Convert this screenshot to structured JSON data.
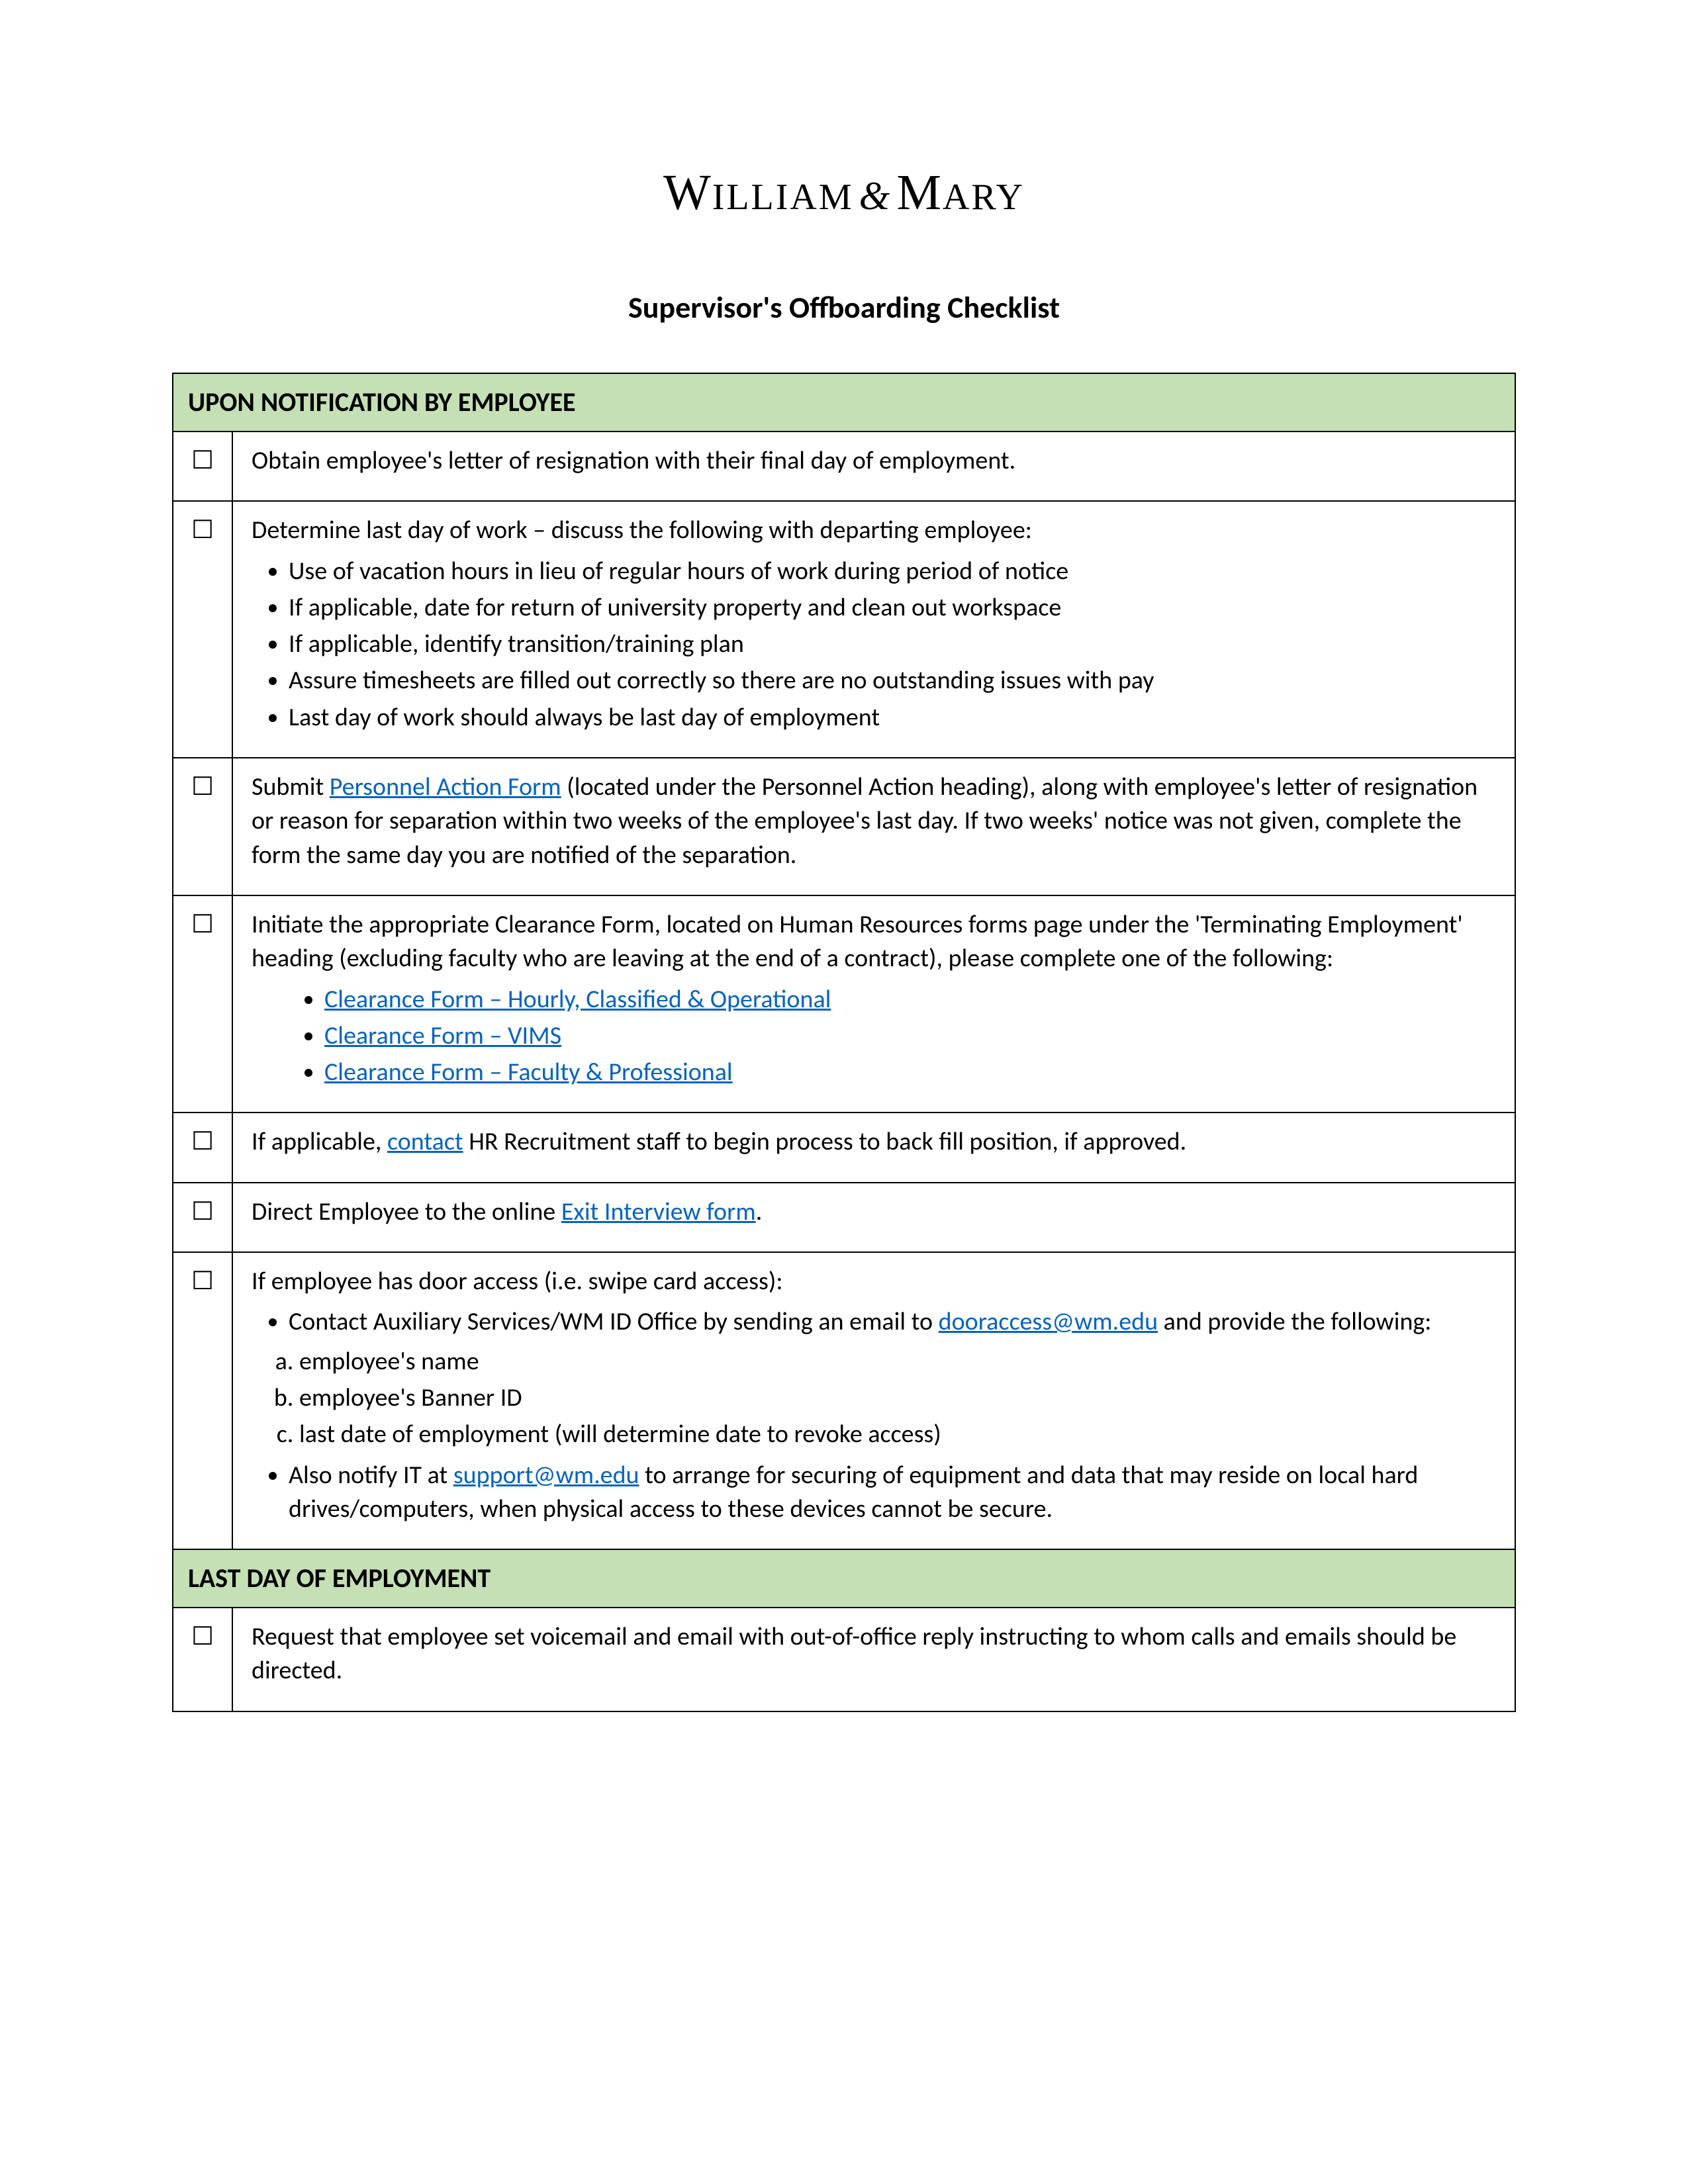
{
  "logo": {
    "w": "W",
    "illiam": "ILLIAM",
    "amp": "&",
    "m": "M",
    "ary": "ARY"
  },
  "title": "Supervisor's Offboarding Checklist",
  "colors": {
    "section_header_bg": "#c5e0b4",
    "link": "#0563c1",
    "border": "#000000",
    "page_bg": "#ffffff",
    "text": "#000000"
  },
  "sections": [
    {
      "header": "UPON NOTIFICATION BY EMPLOYEE",
      "rows": [
        {
          "check": "☐",
          "html": "<p>Obtain employee's letter of resignation with their final day of employment.</p>"
        },
        {
          "check": "☐",
          "html": "<p>Determine last day of work – discuss the following with departing employee:</p><ul><li>Use of vacation hours in lieu of regular hours of work during period of notice</li><li>If applicable, date for return of university property and clean out workspace</li><li>If applicable, identify transition/training plan</li><li>Assure timesheets are filled out correctly so there are no outstanding issues with pay</li><li>Last day of work should always be last day of employment</li></ul>"
        },
        {
          "check": "☐",
          "html": "<p>Submit <a class='doclink' data-name='personnel-action-form-link' data-interactable='true'>Personnel Action Form</a> (located under the Personnel Action heading), along with employee's letter of resignation or reason for separation within two weeks of the employee's last day. If two weeks' notice was not given, complete the form the same day you are notified of the separation.</p>"
        },
        {
          "check": "☐",
          "html": "<p>Initiate the appropriate Clearance Form, located on Human Resources forms page under the 'Terminating Employment' heading (excluding faculty who are leaving at the end of a contract), please complete one of the following:</p><ul class='sub'><li><a class='doclink' data-name='clearance-hourly-link' data-interactable='true'>Clearance Form – Hourly, Classified &amp; Operational</a></li><li><a class='doclink' data-name='clearance-vims-link' data-interactable='true'>Clearance Form – VIMS</a></li><li><a class='doclink' data-name='clearance-faculty-link' data-interactable='true'>Clearance Form – Faculty &amp; Professional</a></li></ul>"
        },
        {
          "check": "☐",
          "html": "<p>If applicable, <a class='doclink' data-name='contact-link' data-interactable='true'>contact</a> HR Recruitment staff to begin process to back fill position, if approved.</p>"
        },
        {
          "check": "☐",
          "html": "<p>Direct Employee to the online <a class='doclink' data-name='exit-interview-link' data-interactable='true'>Exit Interview form</a>.</p>"
        },
        {
          "check": "☐",
          "html": "<p>If employee has door access (i.e. swipe card access):</p><ul><li>Contact Auxiliary Services/WM ID Office by sending an email to <a class='doclink' data-name='dooraccess-email-link' data-interactable='true'>dooraccess@wm.edu</a> and provide the following:</li></ul><ol class='letter'><li>employee's name</li><li>employee's Banner ID</li><li>last date of employment (will determine date to revoke access)</li></ol><ul><li>Also notify IT at <a class='doclink' data-name='support-email-link' data-interactable='true'>support@wm.edu</a> to arrange for securing of equipment and data that may reside on local hard drives/computers, when physical access to these devices cannot be secure.</li></ul>"
        }
      ]
    },
    {
      "header": "LAST DAY OF EMPLOYMENT",
      "rows": [
        {
          "check": "☐",
          "html": "<p>Request that employee set voicemail and email with out-of-office reply instructing to whom calls and emails should be directed.</p>"
        }
      ]
    }
  ],
  "links": {
    "personnel_action_form": "Personnel Action Form",
    "clearance_hourly": "Clearance Form – Hourly, Classified & Operational",
    "clearance_vims": "Clearance Form – VIMS",
    "clearance_faculty": "Clearance Form – Faculty & Professional",
    "contact": "contact",
    "exit_interview": "Exit Interview form",
    "dooraccess_email": "dooraccess@wm.edu",
    "support_email": "support@wm.edu"
  }
}
